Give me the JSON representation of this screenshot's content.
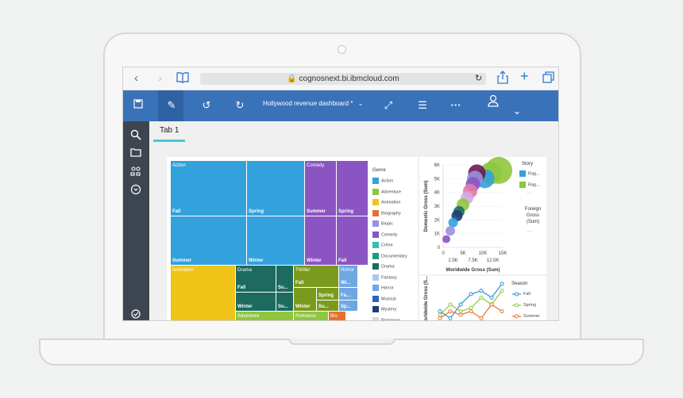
{
  "browser": {
    "url": "cognosnext.bi.ibmcloud.com",
    "back_icon": "chevron-left-icon",
    "forward_icon": "chevron-right-icon",
    "bookmarks_icon": "book-icon",
    "reload_icon": "reload-icon",
    "share_icon": "share-icon",
    "newtab_icon": "plus-icon",
    "tabs_icon": "tabs-icon"
  },
  "toolbar": {
    "title": "Hollywood revenue dashboard *"
  },
  "tabs": [
    {
      "label": "Tab 1"
    }
  ],
  "treemap": {
    "tiles": [
      {
        "genre": "Action",
        "season": "Fall"
      },
      {
        "genre": "",
        "season": "Spring"
      },
      {
        "genre": "",
        "season": "Summer"
      },
      {
        "genre": "",
        "season": "Winter"
      },
      {
        "genre": "Comedy",
        "season": "Summer"
      },
      {
        "genre": "",
        "season": "Spring"
      },
      {
        "genre": "",
        "season": "Winter"
      },
      {
        "genre": "",
        "season": "Fall"
      },
      {
        "genre": "Animation",
        "season": "Fall"
      },
      {
        "genre": "Drama",
        "season": "Fall"
      },
      {
        "genre": "",
        "season": "Su..."
      },
      {
        "genre": "",
        "season": "Winter"
      },
      {
        "genre": "",
        "season": "Su..."
      },
      {
        "genre": "Thriller",
        "season": "Fall"
      },
      {
        "genre": "",
        "season": "Winter"
      },
      {
        "genre": "",
        "season": "Spring"
      },
      {
        "genre": "",
        "season": "Su..."
      },
      {
        "genre": "Horror",
        "season": "Wi..."
      },
      {
        "genre": "",
        "season": "Fa..."
      },
      {
        "genre": "",
        "season": "Sp..."
      },
      {
        "genre": "Adventure",
        "season": ""
      },
      {
        "genre": "Romance",
        "season": ""
      },
      {
        "genre": "Bio",
        "season": ""
      }
    ],
    "legend": {
      "title": "Genre",
      "items": [
        {
          "label": "Action",
          "color": "#33a1dc"
        },
        {
          "label": "Adventure",
          "color": "#8fc63e"
        },
        {
          "label": "Animation",
          "color": "#f0c419"
        },
        {
          "label": "Biography",
          "color": "#e8702a"
        },
        {
          "label": "Biopic",
          "color": "#9b8fe0"
        },
        {
          "label": "Comedy",
          "color": "#8a55c2"
        },
        {
          "label": "Crime",
          "color": "#34c0b2"
        },
        {
          "label": "Documentary",
          "color": "#1e9a85"
        },
        {
          "label": "Drama",
          "color": "#1c6b5e"
        },
        {
          "label": "Fantasy",
          "color": "#a9c8ec"
        },
        {
          "label": "Horror",
          "color": "#6fa7e2"
        },
        {
          "label": "Musical",
          "color": "#2c64b5"
        },
        {
          "label": "Mystery",
          "color": "#1d3c7a"
        },
        {
          "label": "Romance",
          "color": "#d9d9d9"
        }
      ]
    }
  },
  "scatter": {
    "ylabel": "Domestic Gross (Sum)",
    "xlabel": "Worldwide Gross (Sum)",
    "y_ticks": [
      "6K",
      "5K",
      "4K",
      "3K",
      "2K",
      "1K",
      "0"
    ],
    "x_ticks": [
      "0",
      "5K",
      "10K",
      "15K"
    ],
    "x_ticks_mid": [
      "2.5K",
      "7.5K",
      "12.5K"
    ],
    "legend_title": "Story",
    "legend_items": [
      {
        "label": "Rag...",
        "color": "#33a1dc"
      },
      {
        "label": "Rag...",
        "color": "#8fc63e"
      }
    ],
    "legend_more": "...",
    "size_title": "Foreign Gross (Sum)",
    "size_more": "...",
    "chart_data": {
      "type": "scatter",
      "xlabel": "Worldwide Gross (Sum)",
      "ylabel": "Domestic Gross (Sum)",
      "xlim": [
        0,
        15000
      ],
      "ylim": [
        0,
        6000
      ],
      "points": [
        {
          "x": 14000,
          "y": 5600,
          "color": "#8fc63e"
        },
        {
          "x": 12000,
          "y": 5400,
          "color": "#8fc63e"
        },
        {
          "x": 10500,
          "y": 5000,
          "color": "#33a1dc"
        },
        {
          "x": 8500,
          "y": 5400,
          "color": "#6b1d4f"
        },
        {
          "x": 8000,
          "y": 5000,
          "color": "#9b8fe0"
        },
        {
          "x": 7500,
          "y": 4600,
          "color": "#8a55c2"
        },
        {
          "x": 6800,
          "y": 4100,
          "color": "#e07aa8"
        },
        {
          "x": 6000,
          "y": 3600,
          "color": "#d4a8e0"
        },
        {
          "x": 5000,
          "y": 3100,
          "color": "#8fc63e"
        },
        {
          "x": 4000,
          "y": 2600,
          "color": "#1c6b5e"
        },
        {
          "x": 3500,
          "y": 2300,
          "color": "#1d3c7a"
        },
        {
          "x": 2500,
          "y": 1800,
          "color": "#33a1dc"
        },
        {
          "x": 1800,
          "y": 1200,
          "color": "#9b8fe0"
        },
        {
          "x": 800,
          "y": 600,
          "color": "#8a55c2"
        }
      ]
    }
  },
  "linechart": {
    "ylabel": "Worldwide Gross (S...",
    "legend_title": "Season",
    "series_labels": [
      "Fall",
      "Spring",
      "Summer"
    ],
    "chart_data": {
      "type": "line",
      "series": [
        {
          "name": "Fall",
          "color": "#2c8fd6",
          "values": [
            2,
            1,
            3,
            4.5,
            5,
            4,
            6
          ]
        },
        {
          "name": "Spring",
          "color": "#8fc63e",
          "values": [
            1.5,
            3,
            2,
            2.5,
            4,
            3,
            5
          ]
        },
        {
          "name": "Summer",
          "color": "#e8702a",
          "values": [
            1,
            2,
            1.5,
            2,
            1,
            3,
            2
          ]
        }
      ]
    }
  }
}
